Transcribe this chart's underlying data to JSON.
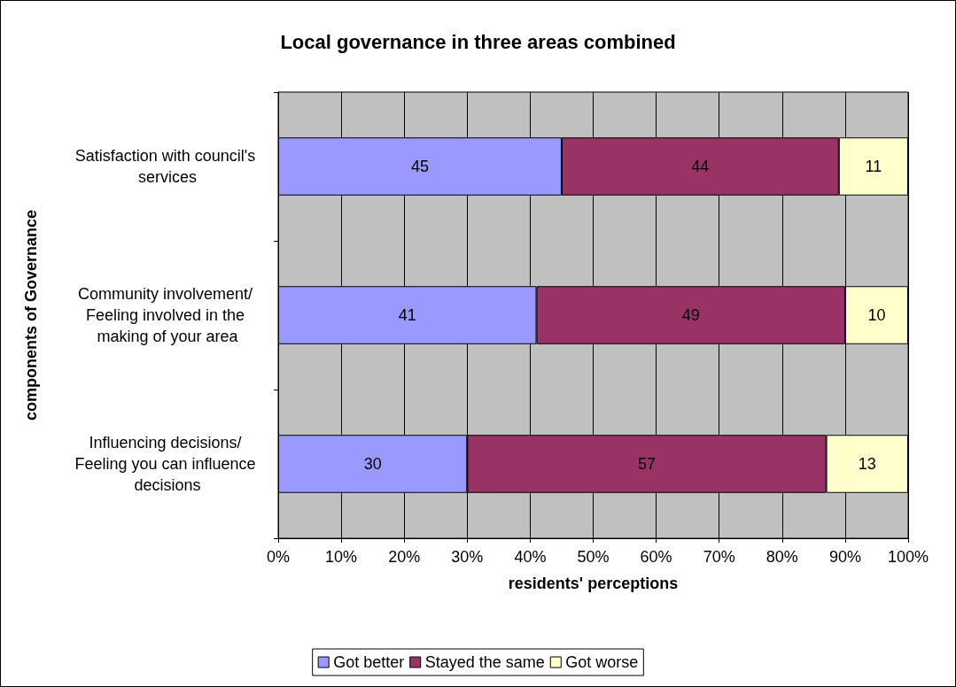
{
  "chart_data": {
    "type": "bar",
    "orientation": "horizontal",
    "stacked": true,
    "title": "Local governance in three areas combined",
    "xlabel": "residents' perceptions",
    "ylabel": "components of Governance",
    "categories": [
      "Satisfaction with council's services",
      "Community involvement/ Feeling involved in the making of your area",
      "Influencing decisions/ Feeling you can influence decisions"
    ],
    "series": [
      {
        "name": "Got better",
        "color": "#9999ff",
        "values": [
          45,
          41,
          30
        ]
      },
      {
        "name": "Stayed the same",
        "color": "#993366",
        "values": [
          44,
          49,
          57
        ]
      },
      {
        "name": "Got worse",
        "color": "#ffffcc",
        "values": [
          11,
          10,
          13
        ]
      }
    ],
    "xlim": [
      0,
      100
    ],
    "xticks": [
      {
        "value": 0,
        "label": "0%"
      },
      {
        "value": 10,
        "label": "10%"
      },
      {
        "value": 20,
        "label": "20%"
      },
      {
        "value": 30,
        "label": "30%"
      },
      {
        "value": 40,
        "label": "40%"
      },
      {
        "value": 50,
        "label": "50%"
      },
      {
        "value": 60,
        "label": "60%"
      },
      {
        "value": 70,
        "label": "70%"
      },
      {
        "value": 80,
        "label": "80%"
      },
      {
        "value": 90,
        "label": "90%"
      },
      {
        "value": 100,
        "label": "100%"
      }
    ],
    "data_labels": true,
    "grid": "x",
    "legend": "bottom"
  }
}
